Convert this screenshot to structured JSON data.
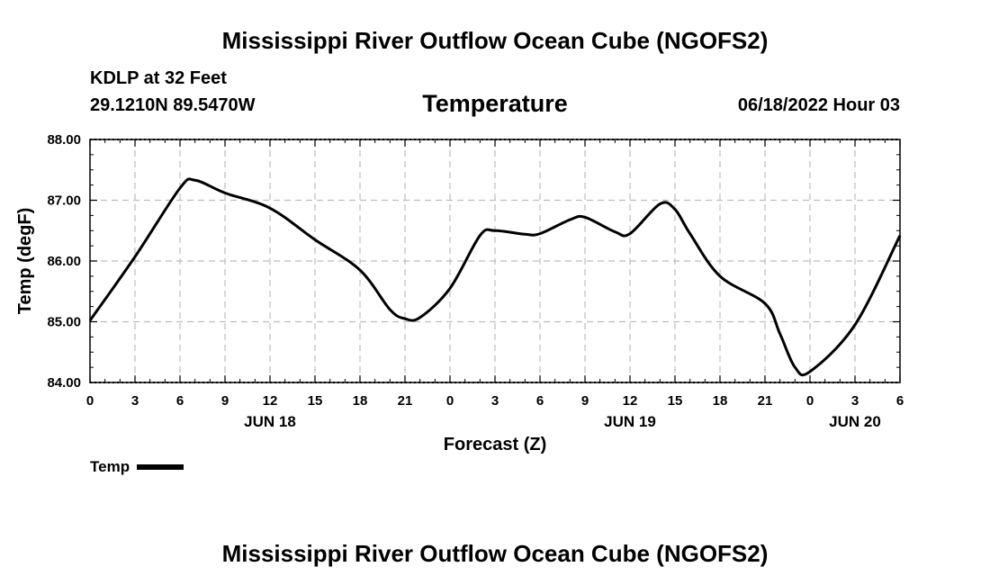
{
  "chart_data": {
    "type": "line",
    "title": "Mississippi River Outflow Ocean Cube (NGOFS2)",
    "station": "KDLP at 32 Feet",
    "coords": "29.1210N  89.5470W",
    "subtitle": "Temperature",
    "datetime": "06/18/2022 Hour 03",
    "xlabel": "Forecast (Z)",
    "ylabel": "Temp (degF)",
    "ylim": [
      84,
      88
    ],
    "xlim": [
      0,
      54
    ],
    "y_ticks": [
      "84.00",
      "85.00",
      "86.00",
      "87.00",
      "88.00"
    ],
    "x_ticks": [
      "0",
      "3",
      "6",
      "9",
      "12",
      "15",
      "18",
      "21",
      "0",
      "3",
      "6",
      "9",
      "12",
      "15",
      "18",
      "21",
      "0",
      "3",
      "6"
    ],
    "date_labels": [
      {
        "label": "JUN 18",
        "hour": 12
      },
      {
        "label": "JUN 19",
        "hour": 36
      },
      {
        "label": "JUN 20",
        "hour": 51
      }
    ],
    "grid": true,
    "legend": "bottom-left",
    "series": [
      {
        "name": "Temp",
        "x": [
          0,
          3,
          6,
          7,
          9,
          12,
          15,
          18,
          20,
          21,
          22,
          24,
          26,
          27,
          29,
          30,
          32,
          33,
          35,
          36,
          38,
          39,
          40,
          42,
          45,
          46,
          47,
          48,
          51,
          54
        ],
        "values": [
          85.02,
          86.07,
          87.2,
          87.33,
          87.12,
          86.87,
          86.35,
          85.85,
          85.2,
          85.05,
          85.07,
          85.55,
          86.42,
          86.5,
          86.44,
          86.45,
          86.68,
          86.72,
          86.48,
          86.45,
          86.94,
          86.85,
          86.45,
          85.75,
          85.3,
          84.8,
          84.25,
          84.18,
          84.95,
          86.42
        ]
      }
    ],
    "final_title": "Mississippi River Outflow Ocean Cube (NGOFS2)"
  }
}
